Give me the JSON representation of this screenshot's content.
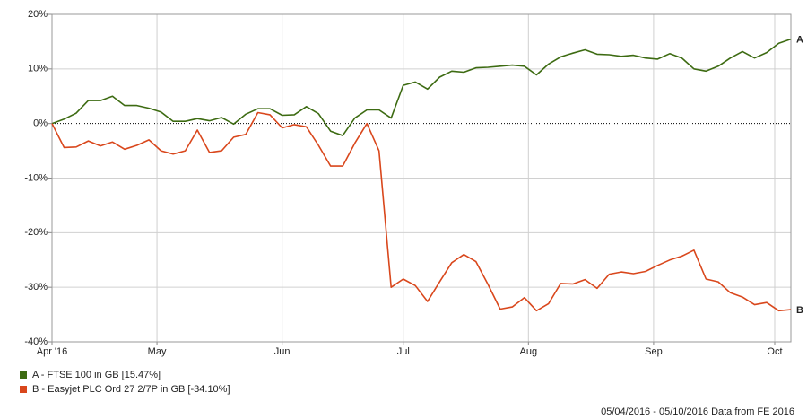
{
  "chart_data": {
    "type": "line",
    "source": "05/04/2016 - 05/10/2016 Data from FE 2016",
    "x": [
      "2016-04-05",
      "2016-04-08",
      "2016-04-11",
      "2016-04-14",
      "2016-04-17",
      "2016-04-20",
      "2016-04-23",
      "2016-04-26",
      "2016-04-29",
      "2016-05-02",
      "2016-05-05",
      "2016-05-08",
      "2016-05-11",
      "2016-05-14",
      "2016-05-17",
      "2016-05-20",
      "2016-05-23",
      "2016-05-26",
      "2016-05-29",
      "2016-06-01",
      "2016-06-04",
      "2016-06-07",
      "2016-06-10",
      "2016-06-13",
      "2016-06-16",
      "2016-06-19",
      "2016-06-22",
      "2016-06-25",
      "2016-06-28",
      "2016-07-01",
      "2016-07-04",
      "2016-07-07",
      "2016-07-10",
      "2016-07-13",
      "2016-07-16",
      "2016-07-19",
      "2016-07-22",
      "2016-07-25",
      "2016-07-28",
      "2016-07-31",
      "2016-08-03",
      "2016-08-06",
      "2016-08-09",
      "2016-08-12",
      "2016-08-15",
      "2016-08-18",
      "2016-08-21",
      "2016-08-24",
      "2016-08-27",
      "2016-08-30",
      "2016-09-02",
      "2016-09-05",
      "2016-09-08",
      "2016-09-11",
      "2016-09-14",
      "2016-09-17",
      "2016-09-20",
      "2016-09-23",
      "2016-09-26",
      "2016-09-29",
      "2016-10-02",
      "2016-10-05"
    ],
    "series": [
      {
        "name": "A - FTSE 100 in GB [15.47%]",
        "label": "A",
        "color": "#3d6b12",
        "values": [
          0,
          0.8,
          1.9,
          4.2,
          4.2,
          5,
          3.3,
          3.3,
          2.8,
          2.1,
          0.4,
          0.4,
          0.9,
          0.5,
          1.1,
          -0.1,
          1.7,
          2.7,
          2.7,
          1.5,
          1.6,
          3.1,
          1.8,
          -1.4,
          -2.2,
          1,
          2.5,
          2.5,
          1,
          7,
          7.6,
          6.3,
          8.5,
          9.6,
          9.4,
          10.2,
          10.3,
          10.5,
          10.7,
          10.5,
          8.9,
          10.9,
          12.2,
          12.9,
          13.5,
          12.7,
          12.6,
          12.3,
          12.5,
          12,
          11.8,
          12.8,
          12,
          10,
          9.6,
          10.5,
          12,
          13.2,
          12,
          13,
          14.7,
          15.47
        ]
      },
      {
        "name": "B - Easyjet PLC Ord 27 2/7P in GB [-34.10%]",
        "label": "B",
        "color": "#d9471c",
        "values": [
          0,
          -4.4,
          -4.3,
          -3.2,
          -4.1,
          -3.4,
          -4.7,
          -4,
          -3,
          -5,
          -5.6,
          -5,
          -1.2,
          -5.3,
          -5,
          -2.5,
          -2,
          2,
          1.6,
          -0.8,
          -0.2,
          -0.6,
          -4,
          -7.8,
          -7.8,
          -3.6,
          0,
          -5,
          -30,
          -28.5,
          -29.7,
          -32.6,
          -29,
          -25.5,
          -24,
          -25.3,
          -29.5,
          -34,
          -33.6,
          -31.9,
          -34.3,
          -33,
          -29.3,
          -29.4,
          -28.6,
          -30.2,
          -27.6,
          -27.2,
          -27.5,
          -27.1,
          -26,
          -25,
          -24.3,
          -23.2,
          -28.5,
          -29,
          -31,
          -31.8,
          -33.2,
          -32.8,
          -34.3,
          -34.1
        ]
      }
    ],
    "xlim": [
      "2016-04-05",
      "2016-10-05"
    ],
    "xticks": [
      {
        "value": "2016-04-05",
        "label": "Apr '16"
      },
      {
        "value": "2016-05-01",
        "label": "May"
      },
      {
        "value": "2016-06-01",
        "label": "Jun"
      },
      {
        "value": "2016-07-01",
        "label": "Jul"
      },
      {
        "value": "2016-08-01",
        "label": "Aug"
      },
      {
        "value": "2016-09-01",
        "label": "Sep"
      },
      {
        "value": "2016-10-01",
        "label": "Oct"
      }
    ],
    "ylim": [
      -40,
      20
    ],
    "yticks": [
      {
        "value": -40,
        "label": "-40%"
      },
      {
        "value": -30,
        "label": "-30%"
      },
      {
        "value": -20,
        "label": "-20%"
      },
      {
        "value": -10,
        "label": "-10%"
      },
      {
        "value": 0,
        "label": "0%"
      },
      {
        "value": 10,
        "label": "10%"
      },
      {
        "value": 20,
        "label": "20%"
      }
    ],
    "grid": true
  }
}
